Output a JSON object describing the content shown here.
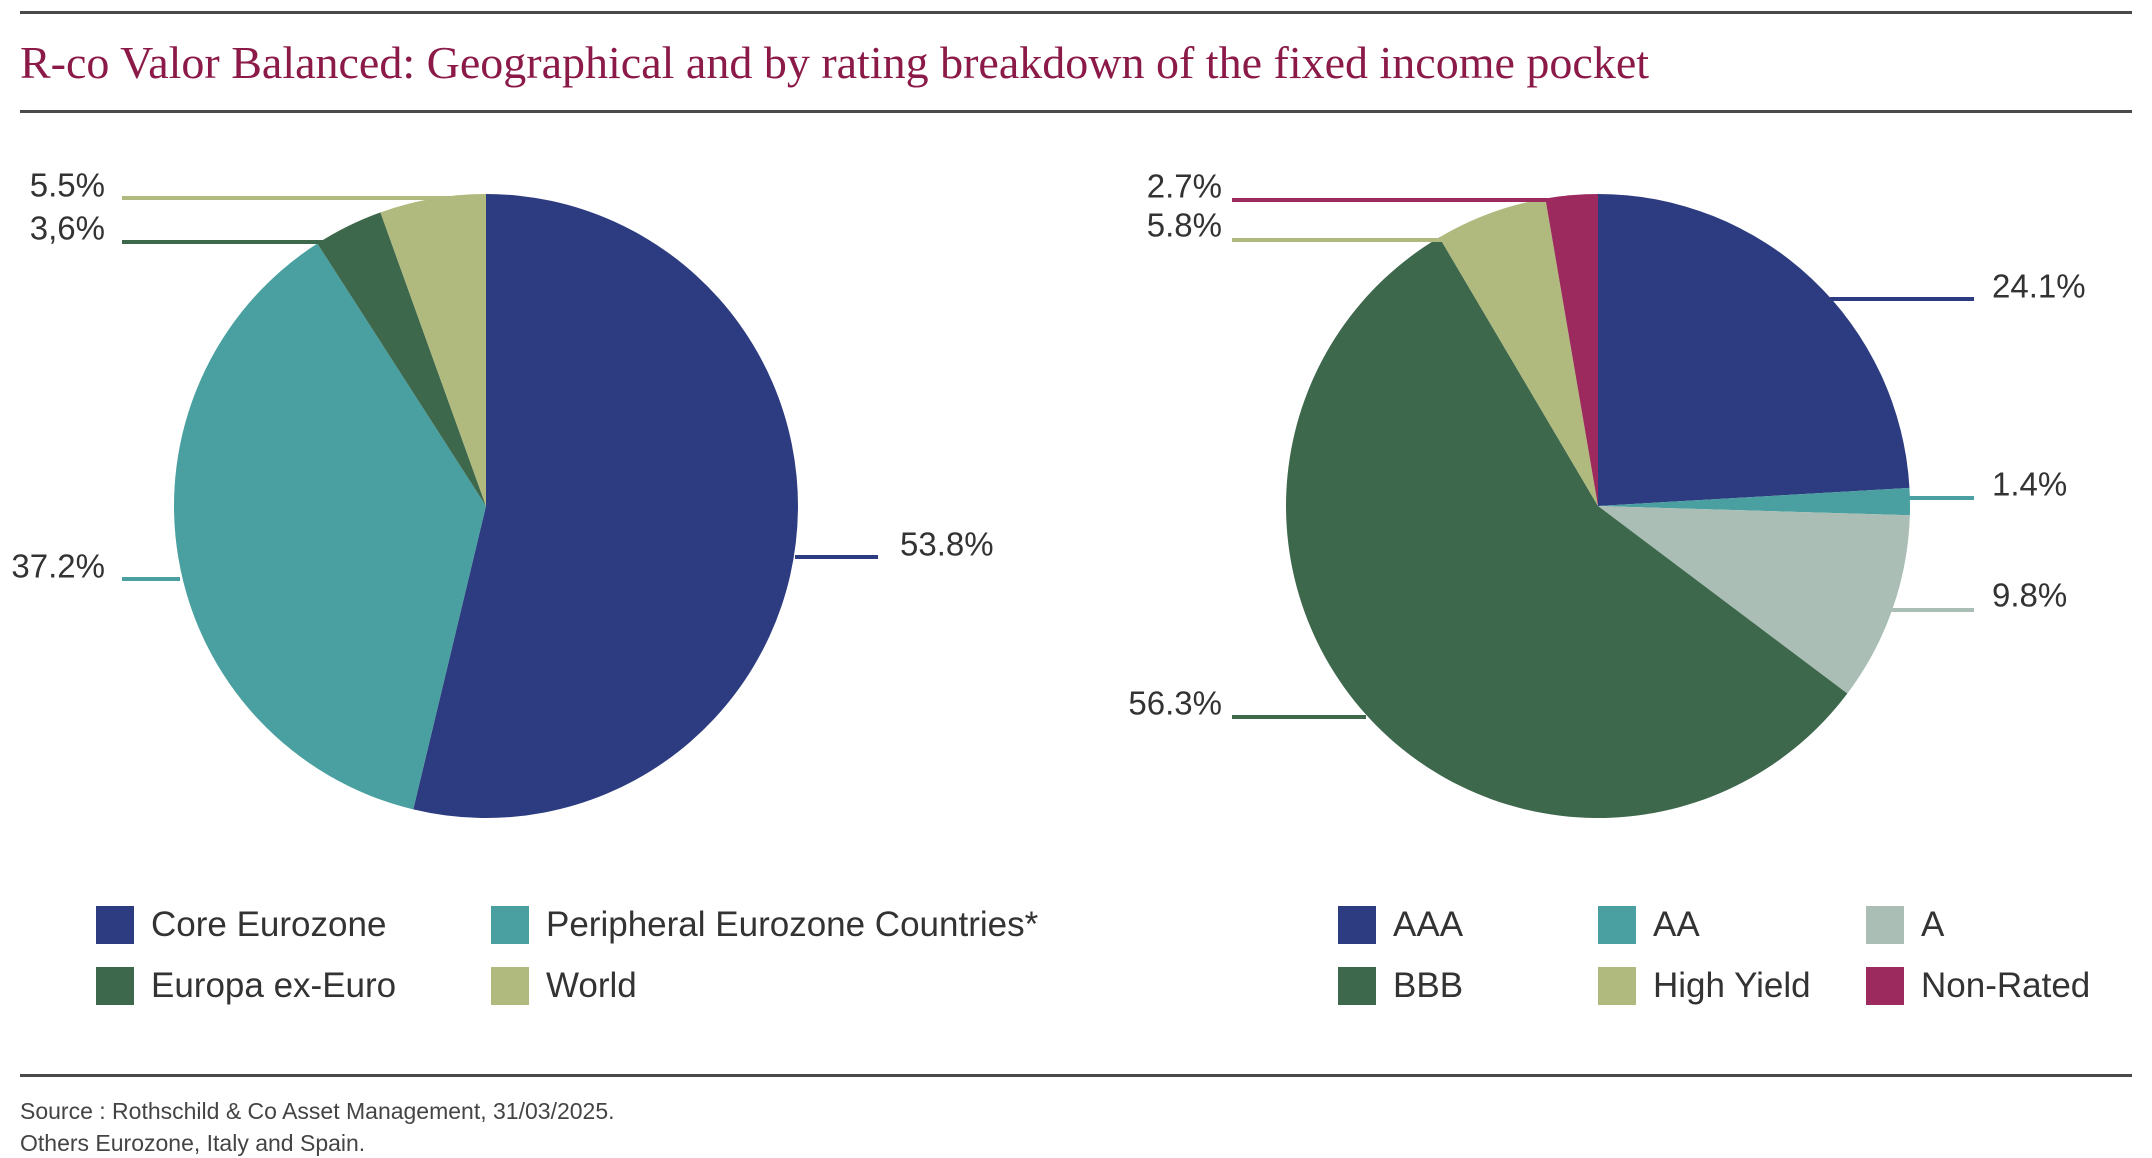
{
  "title": "R-co Valor Balanced: Geographical and by rating breakdown of the fixed income pocket",
  "source_note": "Source : Rothschild & Co Asset Management, 31/03/2025.",
  "footnote": "Others Eurozone, Italy and Spain.",
  "chart_data": [
    {
      "type": "pie",
      "title": "",
      "slices": [
        {
          "name": "Core Eurozone",
          "value": 53.8,
          "label": "53.8%",
          "color": "#2d3c80"
        },
        {
          "name": "Peripheral Eurozone Countries*",
          "value": 37.2,
          "label": "37.2%",
          "color": "#4aa0a0"
        },
        {
          "name": "Europa ex-Euro",
          "value": 3.6,
          "label": "3,6%",
          "color": "#3e684c"
        },
        {
          "name": "World",
          "value": 5.5,
          "label": "5.5%",
          "color": "#b0ba7e"
        }
      ],
      "legend": [
        "Core Eurozone",
        "Peripheral Eurozone Countries*",
        "Europa ex-Euro",
        "World"
      ],
      "legend_position": "bottom"
    },
    {
      "type": "pie",
      "title": "",
      "slices": [
        {
          "name": "AAA",
          "value": 24.1,
          "label": "24.1%",
          "color": "#2d3c80"
        },
        {
          "name": "AA",
          "value": 1.4,
          "label": "1.4%",
          "color": "#4aa0a0"
        },
        {
          "name": "A",
          "value": 9.8,
          "label": "9.8%",
          "color": "#aabeb5"
        },
        {
          "name": "BBB",
          "value": 56.3,
          "label": "56.3%",
          "color": "#3e684c"
        },
        {
          "name": "High Yield",
          "value": 5.8,
          "label": "5.8%",
          "color": "#b0ba7e"
        },
        {
          "name": "Non-Rated",
          "value": 2.7,
          "label": "2.7%",
          "color": "#9c2a5e"
        }
      ],
      "legend": [
        "AAA",
        "AA",
        "A",
        "BBB",
        "High Yield",
        "Non-Rated"
      ],
      "legend_position": "bottom"
    }
  ]
}
